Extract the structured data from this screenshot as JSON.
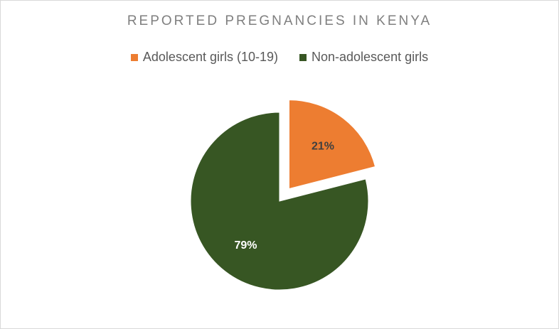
{
  "chart_data": {
    "type": "pie",
    "title": "REPORTED PREGNANCIES IN KENYA",
    "legend_position": "top",
    "slices": [
      {
        "name": "Adolescent girls (10-19)",
        "value": 21,
        "label": "21%",
        "color": "#ED7D31",
        "exploded": true,
        "label_color": "#404040"
      },
      {
        "name": "Non-adolescent girls",
        "value": 79,
        "label": "79%",
        "color": "#375623",
        "exploded": false,
        "label_color": "#ffffff"
      }
    ]
  }
}
